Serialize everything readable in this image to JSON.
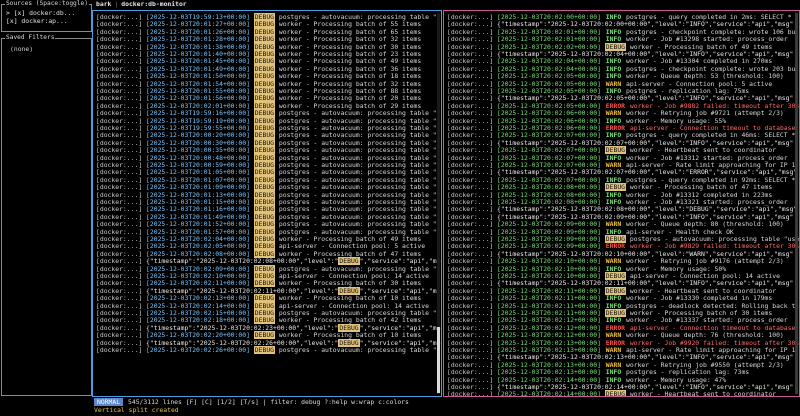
{
  "sidebar": {
    "sources_title": "Sources (Space:toggle)",
    "sources": [
      {
        "check": "> [x]",
        "label": "docker:db..."
      },
      {
        "check": "  [x]",
        "label": "docker:ap..."
      }
    ],
    "filters_title": "Saved Filters",
    "filters_empty": "(none)"
  },
  "header": {
    "app": "bark",
    "title": "docker:db-monitor"
  },
  "colors": {
    "left_border": "#4a9fe0",
    "right_border": "#c85a9a",
    "mode": "#5c86c9",
    "debug_bg": "#e1c27a"
  },
  "left_lines": [
    {
      "src": "[docker:...]",
      "ts": "[2025-12-03T19:59:13+00:00]",
      "lvl": "DEBUG",
      "msg": "postgres - autovacuum: processing table \"use"
    },
    {
      "src": "[docker:...]",
      "ts": "[2025-12-03T20:01:27+00:00]",
      "lvl": "DEBUG",
      "msg": "worker - Processing batch of 55 items"
    },
    {
      "src": "[docker:...]",
      "ts": "[2025-12-03T20:01:26+00:00]",
      "lvl": "DEBUG",
      "msg": "worker - Processing batch of 65 items"
    },
    {
      "src": "[docker:...]",
      "ts": "[2025-12-03T20:01:28+00:00]",
      "lvl": "DEBUG",
      "msg": "worker - Processing batch of 32 items"
    },
    {
      "src": "[docker:...]",
      "ts": "[2025-12-03T20:01:38+00:00]",
      "lvl": "DEBUG",
      "msg": "worker - Processing batch of 30 items"
    },
    {
      "src": "[docker:...]",
      "ts": "[2025-12-03T20:01:40+00:00]",
      "lvl": "DEBUG",
      "msg": "worker - Processing batch of 23 items"
    },
    {
      "src": "[docker:...]",
      "ts": "[2025-12-03T20:01:45+00:00]",
      "lvl": "DEBUG",
      "msg": "worker - Processing batch of 49 items"
    },
    {
      "src": "[docker:...]",
      "ts": "[2025-12-03T20:01:49+00:00]",
      "lvl": "DEBUG",
      "msg": "worker - Processing batch of 36 items"
    },
    {
      "src": "[docker:...]",
      "ts": "[2025-12-03T20:01:50+00:00]",
      "lvl": "DEBUG",
      "msg": "worker - Processing batch of 18 items"
    },
    {
      "src": "[docker:...]",
      "ts": "[2025-12-03T20:01:54+00:00]",
      "lvl": "DEBUG",
      "msg": "worker - Processing batch of 32 items"
    },
    {
      "src": "[docker:...]",
      "ts": "[2025-12-03T20:01:55+00:00]",
      "lvl": "DEBUG",
      "msg": "worker - Processing batch of 88 items"
    },
    {
      "src": "[docker:...]",
      "ts": "[2025-12-03T20:01:56+00:00]",
      "lvl": "DEBUG",
      "msg": "worker - Processing batch of 20 items"
    },
    {
      "src": "[docker:...]",
      "ts": "[2025-12-03T20:02:01+00:00]",
      "lvl": "DEBUG",
      "msg": "worker - Processing batch of 29 items"
    },
    {
      "src": "[docker:...]",
      "ts": "[2025-12-03T19:59:16+00:00]",
      "lvl": "DEBUG",
      "msg": "postgres - autovacuum: processing table \"use"
    },
    {
      "src": "[docker:...]",
      "ts": "[2025-12-03T19:59:19+00:00]",
      "lvl": "DEBUG",
      "msg": "postgres - autovacuum: processing table \"use"
    },
    {
      "src": "[docker:...]",
      "ts": "[2025-12-03T19:59:55+00:00]",
      "lvl": "DEBUG",
      "msg": "postgres - autovacuum: processing table \"use"
    },
    {
      "src": "[docker:...]",
      "ts": "[2025-12-03T20:00:20+00:00]",
      "lvl": "DEBUG",
      "msg": "postgres - autovacuum: processing table \"use"
    },
    {
      "src": "[docker:...]",
      "ts": "[2025-12-03T20:00:30+00:00]",
      "lvl": "DEBUG",
      "msg": "postgres - autovacuum: processing table \"use"
    },
    {
      "src": "[docker:...]",
      "ts": "[2025-12-03T20:00:35+00:00]",
      "lvl": "DEBUG",
      "msg": "postgres - autovacuum: processing table \"use"
    },
    {
      "src": "[docker:...]",
      "ts": "[2025-12-03T20:00:48+00:00]",
      "lvl": "DEBUG",
      "msg": "postgres - autovacuum: processing table \"use"
    },
    {
      "src": "[docker:...]",
      "ts": "[2025-12-03T20:00:59+00:00]",
      "lvl": "DEBUG",
      "msg": "postgres - autovacuum: processing table \"use"
    },
    {
      "src": "[docker:...]",
      "ts": "[2025-12-03T20:01:05+00:00]",
      "lvl": "DEBUG",
      "msg": "postgres - autovacuum: processing table \"use"
    },
    {
      "src": "[docker:...]",
      "ts": "[2025-12-03T20:01:07+00:00]",
      "lvl": "DEBUG",
      "msg": "postgres - autovacuum: processing table \"use"
    },
    {
      "src": "[docker:...]",
      "ts": "[2025-12-03T20:01:09+00:00]",
      "lvl": "DEBUG",
      "msg": "postgres - autovacuum: processing table \"use"
    },
    {
      "src": "[docker:...]",
      "ts": "[2025-12-03T20:01:13+00:00]",
      "lvl": "DEBUG",
      "msg": "postgres - autovacuum: processing table \"use"
    },
    {
      "src": "[docker:...]",
      "ts": "[2025-12-03T20:01:15+00:00]",
      "lvl": "DEBUG",
      "msg": "postgres - autovacuum: processing table \"use"
    },
    {
      "src": "[docker:...]",
      "ts": "[2025-12-03T20:01:16+00:00]",
      "lvl": "DEBUG",
      "msg": "postgres - autovacuum: processing table \"use"
    },
    {
      "src": "[docker:...]",
      "ts": "[2025-12-03T20:01:49+00:00]",
      "lvl": "DEBUG",
      "msg": "postgres - autovacuum: processing table \"use"
    },
    {
      "src": "[docker:...]",
      "ts": "[2025-12-03T20:01:52+00:00]",
      "lvl": "DEBUG",
      "msg": "postgres - autovacuum: processing table \"use"
    },
    {
      "src": "[docker:...]",
      "ts": "[2025-12-03T20:01:57+00:00]",
      "lvl": "DEBUG",
      "msg": "postgres - autovacuum: processing table \"use"
    },
    {
      "src": "[docker:...]",
      "ts": "[2025-12-03T20:02:04+00:00]",
      "lvl": "DEBUG",
      "msg": "worker - Processing batch of 49 items"
    },
    {
      "src": "[docker:...]",
      "ts": "[2025-12-03T20:02:05+00:00]",
      "lvl": "DEBUG",
      "msg": "api-server - Connection pool: 5 active"
    },
    {
      "src": "[docker:...]",
      "ts": "[2025-12-03T20:02:08+00:00]",
      "lvl": "DEBUG",
      "msg": "worker - Processing batch of 47 items"
    },
    {
      "src": "[docker:...]",
      "json": "{\"timestamp\":\"2025-12-03T20:02:08+00:00\",\"level\":\"",
      "jlvl": "DEBUG",
      "jtail": "\",\"service\":\"api\",\"msg\""
    },
    {
      "src": "[docker:...]",
      "ts": "[2025-12-03T20:02:09+00:00]",
      "lvl": "DEBUG",
      "msg": "postgres - autovacuum: processing table \"use"
    },
    {
      "src": "[docker:...]",
      "ts": "[2025-12-03T20:02:10+00:00]",
      "lvl": "DEBUG",
      "msg": "api-server - Connection pool: 14 active"
    },
    {
      "src": "[docker:...]",
      "ts": "[2025-12-03T20:02:11+00:00]",
      "lvl": "DEBUG",
      "msg": "worker - Processing batch of 30 items"
    },
    {
      "src": "[docker:...]",
      "json": "{\"timestamp\":\"2025-12-03T20:02:11+00:00\",\"level\":\"",
      "jlvl": "DEBUG",
      "jtail": "\",\"service\":\"api\",\"msg\""
    },
    {
      "src": "[docker:...]",
      "ts": "[2025-12-03T20:02:13+00:00]",
      "lvl": "DEBUG",
      "msg": "worker - Processing batch of 10 items"
    },
    {
      "src": "[docker:...]",
      "ts": "[2025-12-03T20:02:14+00:00]",
      "lvl": "DEBUG",
      "msg": "api-server - Connection pool: 14 active"
    },
    {
      "src": "[docker:...]",
      "ts": "[2025-12-03T20:02:15+00:00]",
      "lvl": "DEBUG",
      "msg": "postgres - autovacuum: processing table \"use"
    },
    {
      "src": "[docker:...]",
      "ts": "[2025-12-03T20:02:18+00:00]",
      "lvl": "DEBUG",
      "msg": "worker - Processing batch of 42 items"
    },
    {
      "src": "[docker:...]",
      "json": "{\"timestamp\":\"2025-12-03T20:02:23+00:00\",\"level\":\"",
      "jlvl": "DEBUG",
      "jtail": "\",\"service\":\"api\",\"msg\""
    },
    {
      "src": "[docker:...]",
      "ts": "[2025-12-03T20:02:20+00:00]",
      "lvl": "DEBUG",
      "msg": "worker - Processing batch of 10 items"
    },
    {
      "src": "[docker:...]",
      "json": "{\"timestamp\":\"2025-12-03T20:02:26+00:00\",\"level\":\"",
      "jlvl": "DEBUG",
      "jtail": "\",\"service\":\"api\",\"msg\""
    },
    {
      "src": "[docker:...]",
      "ts": "[2025-12-03T20:02:26+00:00]",
      "lvl": "DEBUG",
      "msg": "postgres - autovacuum: processing table \"use"
    }
  ],
  "right_lines": [
    {
      "src": "[docker:...]",
      "ts": "[2025-12-03T20:02:00+00:00]",
      "lvl": "INFO",
      "msg": "postgres - query completed in 2ms: SELECT *"
    },
    {
      "src": "[docker:...]",
      "json": "{\"timestamp\":\"2025-12-03T20:02:00+00:00\",\"level\":\"INFO\",\"service\":\"api\",\"msg\""
    },
    {
      "src": "[docker:...]",
      "ts": "[2025-12-03T20:02:01+00:00]",
      "lvl": "INFO",
      "msg": "postgres - checkpoint complete: wrote 106 bu"
    },
    {
      "src": "[docker:...]",
      "ts": "[2025-12-03T20:02:01+00:00]",
      "lvl": "INFO",
      "msg": "worker - Job #13298 started: process_order"
    },
    {
      "src": "[docker:...]",
      "ts": "[2025-12-03T20:02:02+00:00]",
      "lvl": "DEBUG",
      "msg": "worker - Processing batch of 49 items"
    },
    {
      "src": "[docker:...]",
      "json": "{\"timestamp\":\"2025-12-03T20:02:04+00:00\",\"level\":\"INFO\",\"service\":\"api\",\"msg\""
    },
    {
      "src": "[docker:...]",
      "ts": "[2025-12-03T20:02:04+00:00]",
      "lvl": "INFO",
      "msg": "worker - Job #13304 completed in 270ms"
    },
    {
      "src": "[docker:...]",
      "ts": "[2025-12-03T20:02:04+00:00]",
      "lvl": "INFO",
      "msg": "postgres - checkpoint complete: wrote 203 bu"
    },
    {
      "src": "[docker:...]",
      "ts": "[2025-12-03T20:02:05+00:00]",
      "lvl": "INFO",
      "msg": "worker - Queue depth: 53 (threshold: 100)"
    },
    {
      "src": "[docker:...]",
      "ts": "[2025-12-03T20:02:05+00:00]",
      "lvl": "WARN",
      "msg": "api-server - Connection pool: 5 active"
    },
    {
      "src": "[docker:...]",
      "ts": "[2025-12-03T20:02:05+00:00]",
      "lvl": "INFO",
      "msg": "postgres - replication lag: 75ms"
    },
    {
      "src": "[docker:...]",
      "json": "{\"timestamp\":\"2025-12-03T20:02:05+00:00\",\"level\":\"INFO\",\"service\":\"api\",\"msg\""
    },
    {
      "src": "[docker:...]",
      "ts": "[2025-12-03T20:02:05+00:00]",
      "lvl": "ERROR",
      "msg": "worker - Job #9882 failed: timeout after 30s"
    },
    {
      "src": "[docker:...]",
      "ts": "[2025-12-03T20:02:06+00:00]",
      "lvl": "WARN",
      "msg": "worker - Retrying job #9721 (attempt 2/3)"
    },
    {
      "src": "[docker:...]",
      "ts": "[2025-12-03T20:02:06+00:00]",
      "lvl": "INFO",
      "msg": "worker - Memory usage: 55%"
    },
    {
      "src": "[docker:...]",
      "ts": "[2025-12-03T20:02:06+00:00]",
      "lvl": "ERROR",
      "msg": "api-server - Connection timeout to database"
    },
    {
      "src": "[docker:...]",
      "ts": "[2025-12-03T20:02:07+00:00]",
      "lvl": "INFO",
      "msg": "postgres - query completed in 46ms: SELECT *"
    },
    {
      "src": "[docker:...]",
      "json": "{\"timestamp\":\"2025-12-03T20:02:07+00:00\",\"level\":\"INFO\",\"service\":\"api\",\"msg\""
    },
    {
      "src": "[docker:...]",
      "ts": "[2025-12-03T20:02:07+00:00]",
      "lvl": "DEBUG",
      "msg": "worker - Heartbeat sent to coordinator"
    },
    {
      "src": "[docker:...]",
      "ts": "[2025-12-03T20:02:07+00:00]",
      "lvl": "INFO",
      "msg": "worker - Job #13312 started: process_order"
    },
    {
      "src": "[docker:...]",
      "ts": "[2025-12-03T20:02:07+00:00]",
      "lvl": "WARN",
      "msg": "api-server - Rate limit approaching for IP 1"
    },
    {
      "src": "[docker:...]",
      "json": "{\"timestamp\":\"2025-12-03T20:02:07+00:00\",\"level\":\"ERROR\",\"service\":\"api\",\"msg\""
    },
    {
      "src": "[docker:...]",
      "ts": "[2025-12-03T20:02:07+00:00]",
      "lvl": "INFO",
      "msg": "postgres - query completed in 92ms: SELECT *"
    },
    {
      "src": "[docker:...]",
      "ts": "[2025-12-03T20:02:08+00:00]",
      "lvl": "DEBUG",
      "msg": "worker - Processing batch of 47 items"
    },
    {
      "src": "[docker:...]",
      "ts": "[2025-12-03T20:02:08+00:00]",
      "lvl": "INFO",
      "msg": "worker - Job #13312 completed in 223ms"
    },
    {
      "src": "[docker:...]",
      "ts": "[2025-12-03T20:02:08+00:00]",
      "lvl": "INFO",
      "msg": "worker - Job #13321 started: process_order"
    },
    {
      "src": "[docker:...]",
      "json": "{\"timestamp\":\"2025-12-03T20:02:08+00:00\",\"level\":\"DEBUG\",\"service\":\"api\",\"msg\""
    },
    {
      "src": "[docker:...]",
      "json": "{\"timestamp\":\"2025-12-03T20:02:09+00:00\",\"level\":\"INFO\",\"service\":\"api\",\"msg\""
    },
    {
      "src": "[docker:...]",
      "ts": "[2025-12-03T20:02:09+00:00]",
      "lvl": "WARN",
      "msg": "worker - Queue depth: 80 (threshold: 100)"
    },
    {
      "src": "[docker:...]",
      "ts": "[2025-12-03T20:02:09+00:00]",
      "lvl": "INFO",
      "msg": "api-server - Health check OK"
    },
    {
      "src": "[docker:...]",
      "ts": "[2025-12-03T20:02:09+00:00]",
      "lvl": "DEBUG",
      "msg": "postgres - autovacuum: processing table \"use"
    },
    {
      "src": "[docker:...]",
      "ts": "[2025-12-03T20:02:09+00:00]",
      "lvl": "ERROR",
      "msg": "worker - Job #9829 failed: timeout after 30s"
    },
    {
      "src": "[docker:...]",
      "json": "{\"timestamp\":\"2025-12-03T20:02:10+00:00\",\"level\":\"WARN\",\"service\":\"api\",\"msg\""
    },
    {
      "src": "[docker:...]",
      "ts": "[2025-12-03T20:02:10+00:00]",
      "lvl": "WARN",
      "msg": "worker - Retrying job #9176 (attempt 2/3)"
    },
    {
      "src": "[docker:...]",
      "ts": "[2025-12-03T20:02:10+00:00]",
      "lvl": "INFO",
      "msg": "worker - Memory usage: 50%"
    },
    {
      "src": "[docker:...]",
      "ts": "[2025-12-03T20:02:10+00:00]",
      "lvl": "DEBUG",
      "msg": "api-server - Connection pool: 14 active"
    },
    {
      "src": "[docker:...]",
      "json": "{\"timestamp\":\"2025-12-03T20:02:11+00:00\",\"level\":\"INFO\",\"service\":\"api\",\"msg\""
    },
    {
      "src": "[docker:...]",
      "ts": "[2025-12-03T20:02:11+00:00]",
      "lvl": "DEBUG",
      "msg": "worker - Heartbeat sent to coordinator"
    },
    {
      "src": "[docker:...]",
      "ts": "[2025-12-03T20:02:11+00:00]",
      "lvl": "INFO",
      "msg": "worker - Job #13330 completed in 179ms"
    },
    {
      "src": "[docker:...]",
      "ts": "[2025-12-03T20:02:11+00:00]",
      "lvl": "INFO",
      "msg": "postgres - deadlock detected: Rolling back t"
    },
    {
      "src": "[docker:...]",
      "ts": "[2025-12-03T20:02:11+00:00]",
      "lvl": "DEBUG",
      "msg": "worker - Processing batch of 30 items"
    },
    {
      "src": "[docker:...]",
      "ts": "[2025-12-03T20:02:12+00:00]",
      "lvl": "INFO",
      "msg": "worker - Job #13337 started: process_order"
    },
    {
      "src": "[docker:...]",
      "ts": "[2025-12-03T20:02:12+00:00]",
      "lvl": "ERROR",
      "msg": "api-server - Connection timeout to database"
    },
    {
      "src": "[docker:...]",
      "ts": "[2025-12-03T20:02:12+00:00]",
      "lvl": "WARN",
      "msg": "worker - Queue depth: 76 (threshold: 100)"
    },
    {
      "src": "[docker:...]",
      "ts": "[2025-12-03T20:02:13+00:00]",
      "lvl": "ERROR",
      "msg": "worker - Job #9920 failed: timeout after 30s"
    },
    {
      "src": "[docker:...]",
      "ts": "[2025-12-03T20:02:13+00:00]",
      "lvl": "WARN",
      "msg": "api-server - Rate limit approaching for IP 1"
    },
    {
      "src": "[docker:...]",
      "json": "{\"timestamp\":\"2025-12-03T20:02:13+00:00\",\"level\":\"INFO\",\"service\":\"api\",\"msg\""
    },
    {
      "src": "[docker:...]",
      "ts": "[2025-12-03T20:02:13+00:00]",
      "lvl": "WARN",
      "msg": "worker - Retrying job #9550 (attempt 2/3)"
    },
    {
      "src": "[docker:...]",
      "ts": "[2025-12-03T20:02:13+00:00]",
      "lvl": "INFO",
      "msg": "postgres - replication lag: 73ms"
    },
    {
      "src": "[docker:...]",
      "ts": "[2025-12-03T20:02:14+00:00]",
      "lvl": "INFO",
      "msg": "worker - Memory usage: 47%"
    },
    {
      "src": "[docker:...]",
      "json": "{\"timestamp\":\"2025-12-03T20:02:14+00:00\",\"level\":\"INFO\",\"service\":\"api\",\"msg\""
    },
    {
      "src": "[docker:...]",
      "ts": "[2025-12-03T20:02:14+00:00]",
      "lvl": "DEBUG",
      "msg": "worker - Heartbeat sent to coordinator"
    }
  ],
  "status": {
    "mode": "NORMAL",
    "text": "545/3112 lines [F] [C] [1/2] [T/s] | filter: debug  ?:help  w:wrap  c:colors"
  },
  "message": "Vertical split created"
}
